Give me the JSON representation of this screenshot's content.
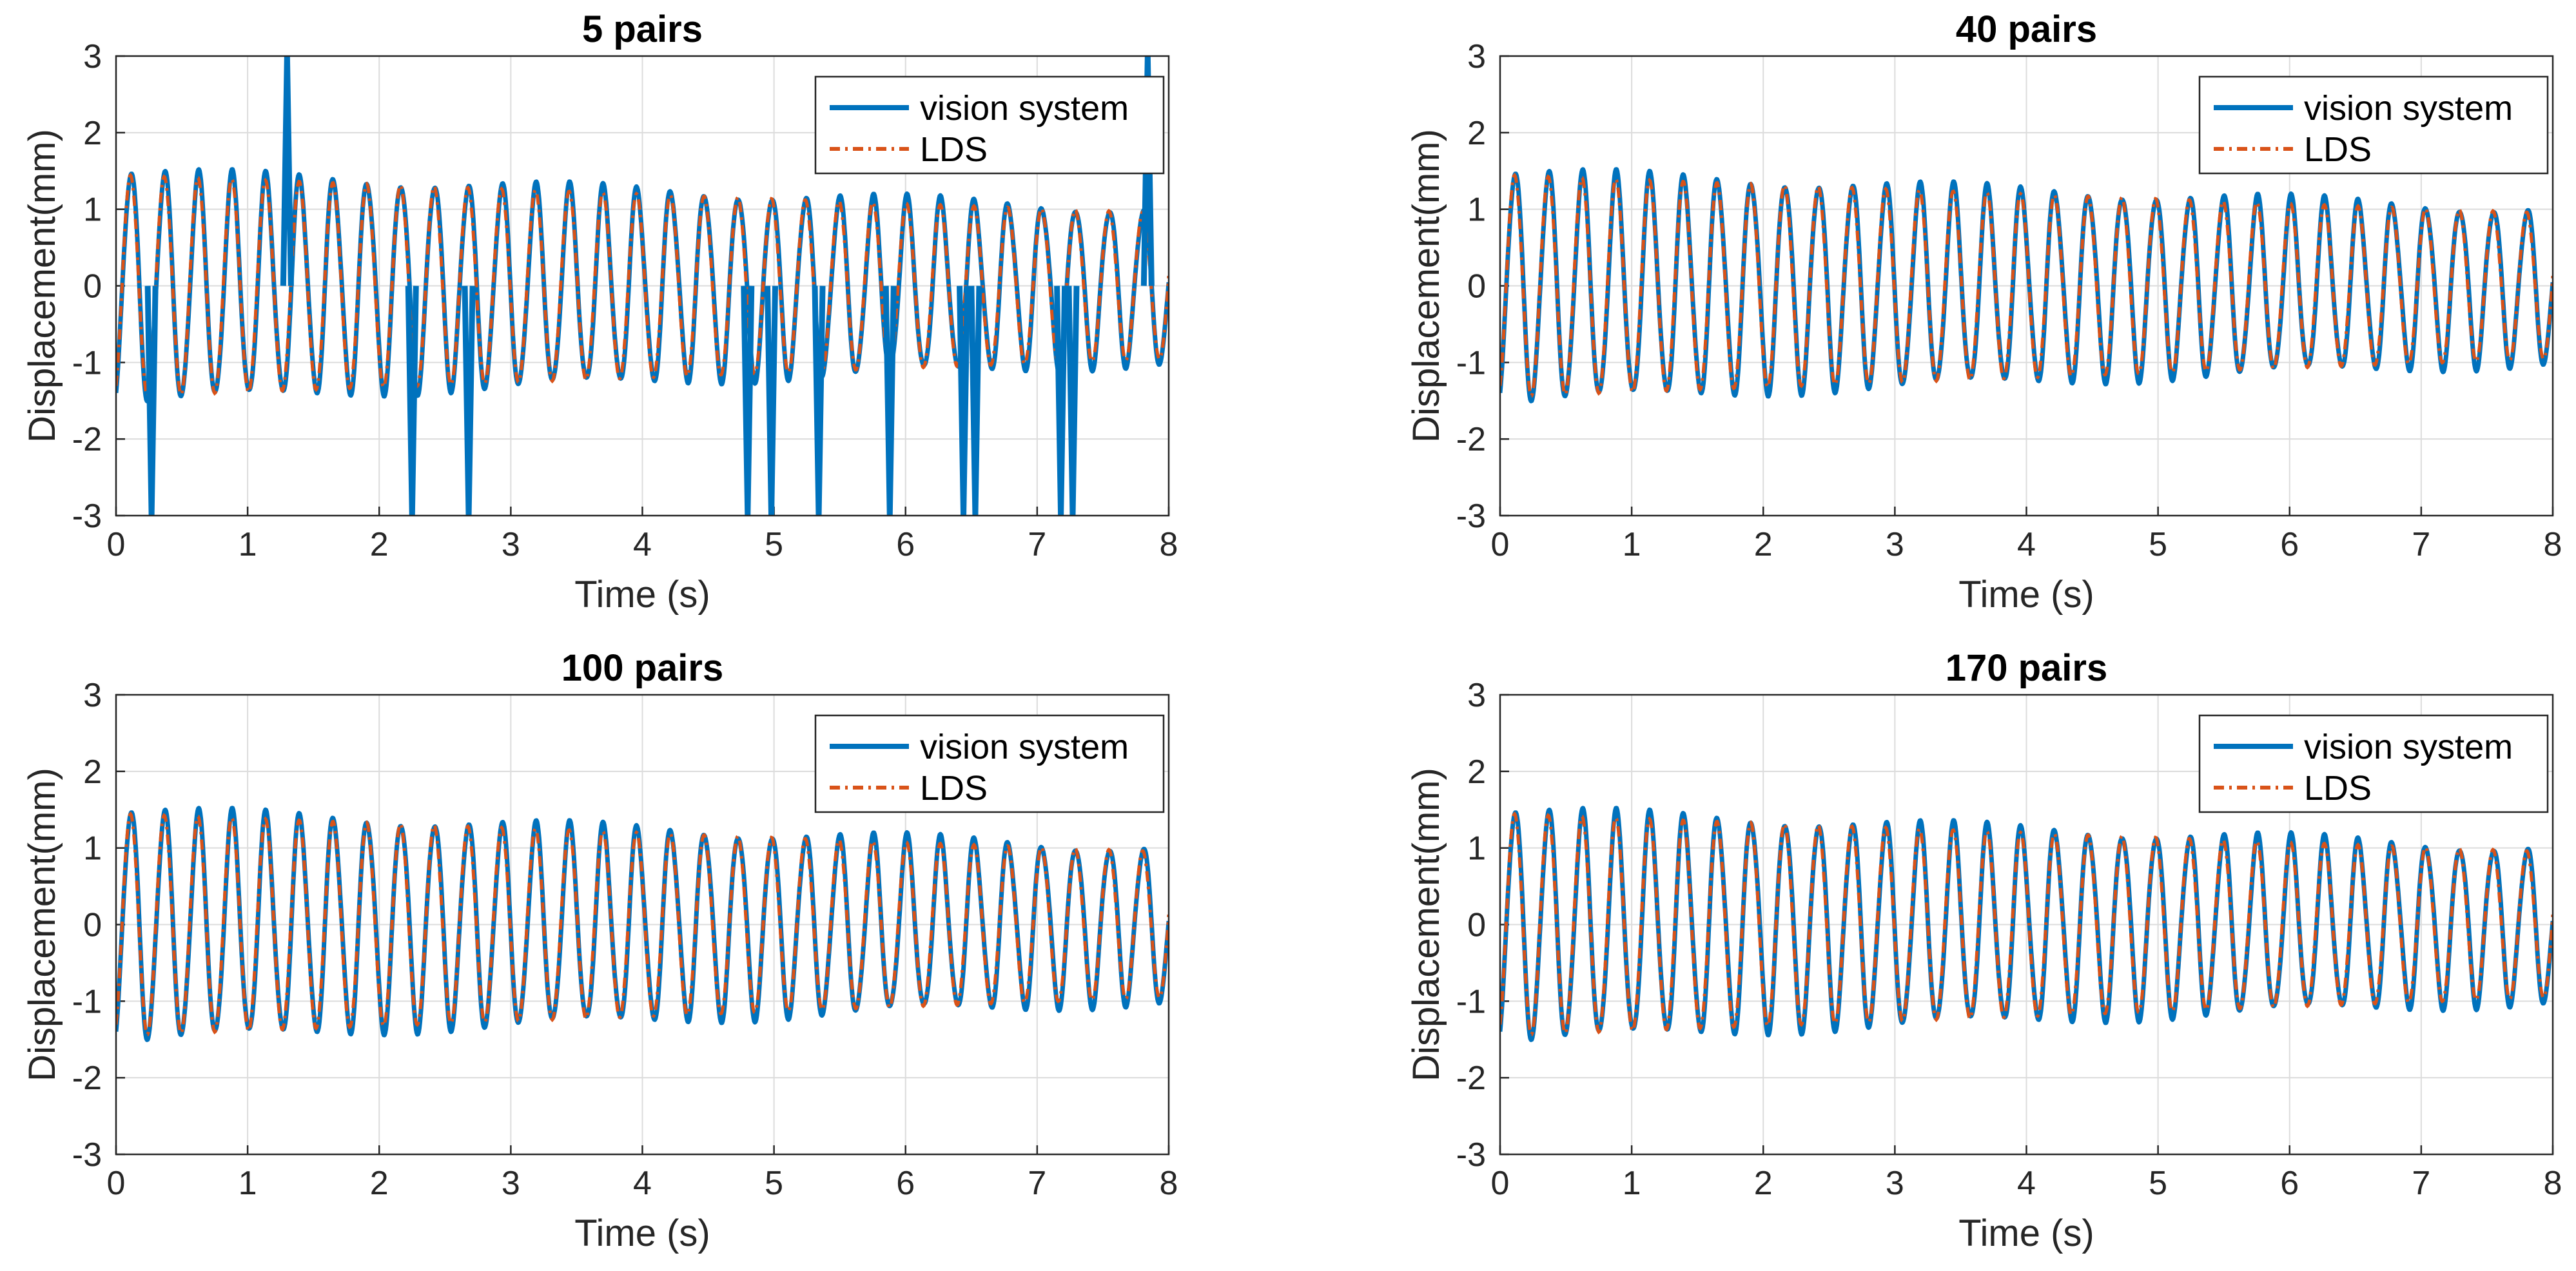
{
  "chart_data": [
    {
      "type": "line",
      "title": "5 pairs",
      "xlabel": "Time (s)",
      "ylabel": "Displacement(mm)",
      "xlim": [
        0,
        8
      ],
      "ylim": [
        -3,
        3
      ],
      "xticks": [
        "0",
        "1",
        "2",
        "3",
        "4",
        "5",
        "6",
        "7",
        "8"
      ],
      "yticks": [
        "3",
        "2",
        "1",
        "0",
        "-1",
        "-2",
        "-3"
      ],
      "grid": true,
      "legend": "top-right",
      "amp_start": 1.5,
      "amp_end": 1.0,
      "frequency_hz": 3.9,
      "spikes": [
        [
          0.27,
          -3
        ],
        [
          1.3,
          3
        ],
        [
          2.25,
          -3
        ],
        [
          2.68,
          -3
        ],
        [
          4.8,
          -3
        ],
        [
          4.98,
          -3
        ],
        [
          5.34,
          -3
        ],
        [
          5.88,
          -3
        ],
        [
          6.44,
          -3
        ],
        [
          6.53,
          -3
        ],
        [
          7.18,
          -3
        ],
        [
          7.27,
          -3
        ],
        [
          7.84,
          3
        ]
      ],
      "series": [
        {
          "name": "vision system",
          "color": "#0072BD",
          "style": "solid"
        },
        {
          "name": "LDS",
          "color": "#D95319",
          "style": "dash-dot"
        }
      ]
    },
    {
      "type": "line",
      "title": "40 pairs",
      "xlabel": "Time (s)",
      "ylabel": "Displacement(mm)",
      "xlim": [
        0,
        8
      ],
      "ylim": [
        -3,
        3
      ],
      "xticks": [
        "0",
        "1",
        "2",
        "3",
        "4",
        "5",
        "6",
        "7",
        "8"
      ],
      "yticks": [
        "3",
        "2",
        "1",
        "0",
        "-1",
        "-2",
        "-3"
      ],
      "grid": true,
      "legend": "top-right",
      "amp_start": 1.5,
      "amp_end": 1.0,
      "frequency_hz": 3.9,
      "spikes": [],
      "series": [
        {
          "name": "vision system",
          "color": "#0072BD",
          "style": "solid"
        },
        {
          "name": "LDS",
          "color": "#D95319",
          "style": "dash-dot"
        }
      ]
    },
    {
      "type": "line",
      "title": "100 pairs",
      "xlabel": "Time (s)",
      "ylabel": "Displacement(mm)",
      "xlim": [
        0,
        8
      ],
      "ylim": [
        -3,
        3
      ],
      "xticks": [
        "0",
        "1",
        "2",
        "3",
        "4",
        "5",
        "6",
        "7",
        "8"
      ],
      "yticks": [
        "3",
        "2",
        "1",
        "0",
        "-1",
        "-2",
        "-3"
      ],
      "grid": true,
      "legend": "top-right",
      "amp_start": 1.5,
      "amp_end": 1.0,
      "frequency_hz": 3.9,
      "spikes": [],
      "series": [
        {
          "name": "vision system",
          "color": "#0072BD",
          "style": "solid"
        },
        {
          "name": "LDS",
          "color": "#D95319",
          "style": "dash-dot"
        }
      ]
    },
    {
      "type": "line",
      "title": "170 pairs",
      "xlabel": "Time (s)",
      "ylabel": "Displacement(mm)",
      "xlim": [
        0,
        8
      ],
      "ylim": [
        -3,
        3
      ],
      "xticks": [
        "0",
        "1",
        "2",
        "3",
        "4",
        "5",
        "6",
        "7",
        "8"
      ],
      "yticks": [
        "3",
        "2",
        "1",
        "0",
        "-1",
        "-2",
        "-3"
      ],
      "grid": true,
      "legend": "top-right",
      "amp_start": 1.5,
      "amp_end": 1.0,
      "frequency_hz": 3.9,
      "spikes": [],
      "series": [
        {
          "name": "vision system",
          "color": "#0072BD",
          "style": "solid"
        },
        {
          "name": "LDS",
          "color": "#D95319",
          "style": "dash-dot"
        }
      ]
    }
  ]
}
